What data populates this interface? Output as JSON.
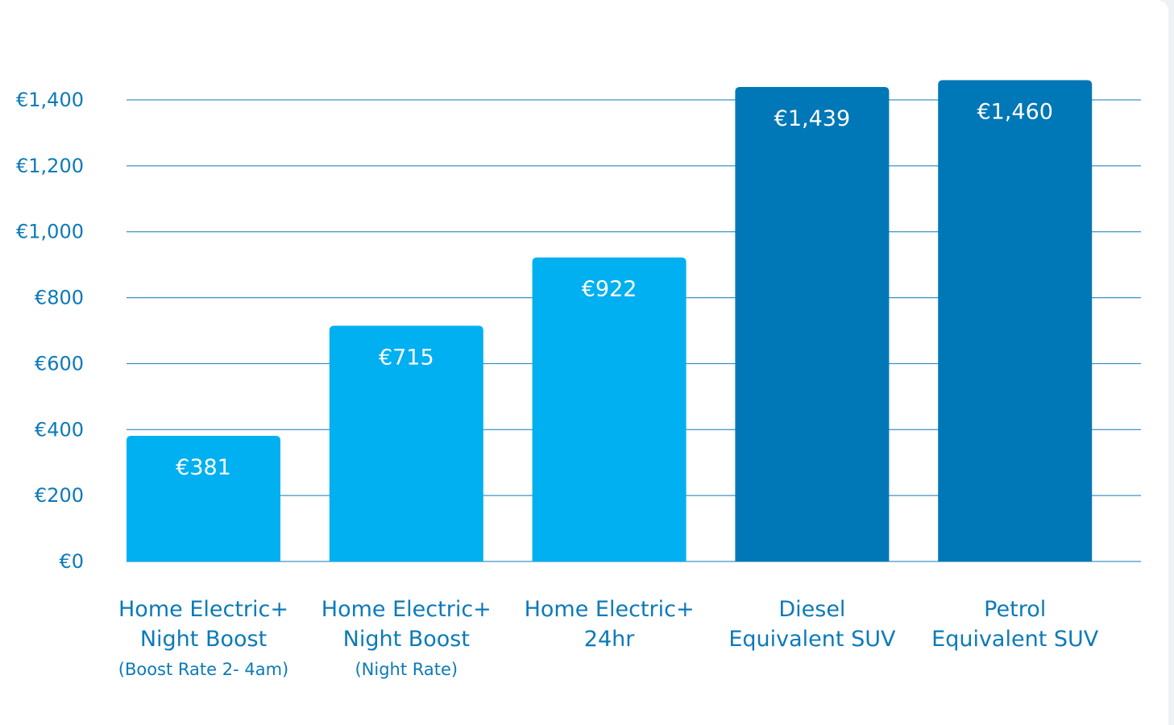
{
  "chart_data": {
    "type": "bar",
    "title": "",
    "xlabel": "",
    "ylabel": "",
    "ylim": [
      0,
      1400
    ],
    "yticks": [
      "€0",
      "€200",
      "€400",
      "€600",
      "€800",
      "€1,000",
      "€1,200",
      "€1,400"
    ],
    "ytick_values": [
      0,
      200,
      400,
      600,
      800,
      1000,
      1200,
      1400
    ],
    "grid": true,
    "legend": "none",
    "categories": [
      [
        "Home Electric+",
        "Night Boost",
        "(Boost Rate 2- 4am)"
      ],
      [
        "Home Electric+",
        "Night Boost",
        "(Night Rate)"
      ],
      [
        "Home Electric+",
        "24hr"
      ],
      [
        "Diesel",
        "Equivalent SUV"
      ],
      [
        "Petrol",
        "Equivalent SUV"
      ]
    ],
    "values": [
      381,
      715,
      922,
      1439,
      1460
    ],
    "data_labels": [
      "€381",
      "€715",
      "€922",
      "€1,439",
      "€1,460"
    ],
    "colors": [
      "#00b0f0",
      "#00b0f0",
      "#00b0f0",
      "#0077b6",
      "#0077b6"
    ],
    "axis_color": "#0c7ab8"
  }
}
